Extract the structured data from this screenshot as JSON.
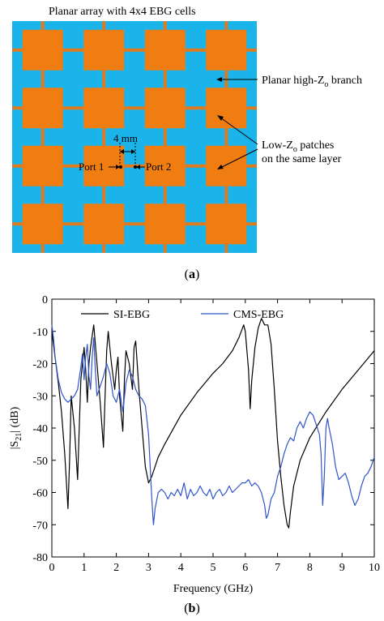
{
  "panel_a": {
    "title": "Planar array with 4x4 EBG cells",
    "grid_rows": 4,
    "grid_cols": 4,
    "colors": {
      "substrate": "#1ab4ea",
      "patch": "#f07d12",
      "branch": "#e07a20"
    },
    "dim_label": "4 mm",
    "port1_label": "Port 1",
    "port2_label": "Port 2",
    "label_branch_pre": "Planar high-Z",
    "label_branch_sub": "o",
    "label_branch_post": " branch",
    "label_patch_pre": "Low-Z",
    "label_patch_sub": "o",
    "label_patch_post": " patches",
    "label_patch_line2": "on the same layer",
    "caption_open": "(",
    "caption_letter": "a",
    "caption_close": ")"
  },
  "panel_b": {
    "caption_open": "(",
    "caption_letter": "b",
    "caption_close": ")",
    "ylabel_pre": "|S",
    "ylabel_sub": "21",
    "ylabel_post": "| (dB)",
    "chart_data": {
      "type": "line",
      "xlabel": "Frequency (GHz)",
      "ylabel": "|S21| (dB)",
      "xlim": [
        0,
        10
      ],
      "ylim": [
        -80,
        0
      ],
      "xticks": [
        0,
        1,
        2,
        3,
        4,
        5,
        6,
        7,
        8,
        9,
        10
      ],
      "yticks": [
        0,
        -10,
        -20,
        -30,
        -40,
        -50,
        -60,
        -70,
        -80
      ],
      "grid": false,
      "legend_position": "top-left",
      "series": [
        {
          "name": "SI-EBG",
          "color": "#000000",
          "points": [
            [
              0,
              -10
            ],
            [
              0.1,
              -18
            ],
            [
              0.2,
              -26
            ],
            [
              0.3,
              -35
            ],
            [
              0.4,
              -48
            ],
            [
              0.5,
              -65
            ],
            [
              0.55,
              -50
            ],
            [
              0.6,
              -30
            ],
            [
              0.7,
              -40
            ],
            [
              0.8,
              -56
            ],
            [
              0.85,
              -40
            ],
            [
              0.9,
              -25
            ],
            [
              1.0,
              -15
            ],
            [
              1.05,
              -22
            ],
            [
              1.1,
              -32
            ],
            [
              1.15,
              -20
            ],
            [
              1.2,
              -15
            ],
            [
              1.3,
              -8
            ],
            [
              1.4,
              -20
            ],
            [
              1.5,
              -32
            ],
            [
              1.6,
              -46
            ],
            [
              1.65,
              -30
            ],
            [
              1.7,
              -16
            ],
            [
              1.75,
              -10
            ],
            [
              1.85,
              -20
            ],
            [
              1.95,
              -28
            ],
            [
              2.0,
              -22
            ],
            [
              2.05,
              -18
            ],
            [
              2.1,
              -30
            ],
            [
              2.2,
              -41
            ],
            [
              2.25,
              -25
            ],
            [
              2.3,
              -16
            ],
            [
              2.4,
              -20
            ],
            [
              2.5,
              -28
            ],
            [
              2.55,
              -15
            ],
            [
              2.6,
              -13
            ],
            [
              2.7,
              -28
            ],
            [
              2.8,
              -40
            ],
            [
              2.9,
              -52
            ],
            [
              3.0,
              -57
            ],
            [
              3.1,
              -55
            ],
            [
              3.3,
              -49
            ],
            [
              3.5,
              -45
            ],
            [
              4.0,
              -36
            ],
            [
              4.5,
              -29
            ],
            [
              5.0,
              -23
            ],
            [
              5.3,
              -20
            ],
            [
              5.6,
              -16
            ],
            [
              5.8,
              -12
            ],
            [
              5.95,
              -8
            ],
            [
              6.0,
              -10
            ],
            [
              6.1,
              -22
            ],
            [
              6.15,
              -34
            ],
            [
              6.2,
              -25
            ],
            [
              6.3,
              -15
            ],
            [
              6.4,
              -9
            ],
            [
              6.5,
              -6
            ],
            [
              6.6,
              -8
            ],
            [
              6.7,
              -8
            ],
            [
              6.8,
              -14
            ],
            [
              6.9,
              -28
            ],
            [
              7.0,
              -44
            ],
            [
              7.1,
              -55
            ],
            [
              7.2,
              -64
            ],
            [
              7.3,
              -70
            ],
            [
              7.35,
              -71
            ],
            [
              7.4,
              -66
            ],
            [
              7.5,
              -58
            ],
            [
              7.7,
              -50
            ],
            [
              8.0,
              -43
            ],
            [
              8.5,
              -35
            ],
            [
              9.0,
              -28
            ],
            [
              9.5,
              -22
            ],
            [
              10.0,
              -16
            ]
          ]
        },
        {
          "name": "CMS-EBG",
          "color": "#2f55c8",
          "points": [
            [
              0,
              -8
            ],
            [
              0.05,
              -12
            ],
            [
              0.1,
              -18
            ],
            [
              0.2,
              -25
            ],
            [
              0.3,
              -29
            ],
            [
              0.4,
              -31
            ],
            [
              0.5,
              -32
            ],
            [
              0.6,
              -31
            ],
            [
              0.7,
              -30
            ],
            [
              0.8,
              -28
            ],
            [
              0.9,
              -21
            ],
            [
              0.95,
              -17
            ],
            [
              1.0,
              -25
            ],
            [
              1.05,
              -18
            ],
            [
              1.1,
              -14
            ],
            [
              1.15,
              -24
            ],
            [
              1.2,
              -28
            ],
            [
              1.25,
              -18
            ],
            [
              1.3,
              -12
            ],
            [
              1.35,
              -22
            ],
            [
              1.4,
              -30
            ],
            [
              1.5,
              -27
            ],
            [
              1.6,
              -24
            ],
            [
              1.7,
              -20
            ],
            [
              1.8,
              -23
            ],
            [
              1.9,
              -30
            ],
            [
              2.0,
              -32
            ],
            [
              2.1,
              -28
            ],
            [
              2.2,
              -35
            ],
            [
              2.3,
              -26
            ],
            [
              2.4,
              -22
            ],
            [
              2.5,
              -24
            ],
            [
              2.6,
              -28
            ],
            [
              2.7,
              -30
            ],
            [
              2.8,
              -31
            ],
            [
              2.9,
              -33
            ],
            [
              3.0,
              -42
            ],
            [
              3.05,
              -52
            ],
            [
              3.1,
              -62
            ],
            [
              3.15,
              -70
            ],
            [
              3.2,
              -65
            ],
            [
              3.3,
              -60
            ],
            [
              3.4,
              -59
            ],
            [
              3.5,
              -60
            ],
            [
              3.6,
              -62
            ],
            [
              3.7,
              -60
            ],
            [
              3.8,
              -61
            ],
            [
              3.9,
              -59
            ],
            [
              4.0,
              -61
            ],
            [
              4.1,
              -57
            ],
            [
              4.2,
              -62
            ],
            [
              4.3,
              -59
            ],
            [
              4.4,
              -61
            ],
            [
              4.5,
              -60
            ],
            [
              4.6,
              -58
            ],
            [
              4.7,
              -60
            ],
            [
              4.8,
              -61
            ],
            [
              4.9,
              -59
            ],
            [
              5.0,
              -62
            ],
            [
              5.1,
              -60
            ],
            [
              5.2,
              -59
            ],
            [
              5.3,
              -61
            ],
            [
              5.4,
              -60
            ],
            [
              5.5,
              -58
            ],
            [
              5.6,
              -60
            ],
            [
              5.7,
              -59
            ],
            [
              5.8,
              -58
            ],
            [
              5.9,
              -57
            ],
            [
              6.0,
              -57
            ],
            [
              6.1,
              -56
            ],
            [
              6.2,
              -58
            ],
            [
              6.3,
              -57
            ],
            [
              6.4,
              -58
            ],
            [
              6.5,
              -60
            ],
            [
              6.6,
              -64
            ],
            [
              6.65,
              -68
            ],
            [
              6.7,
              -67
            ],
            [
              6.8,
              -62
            ],
            [
              6.9,
              -60
            ],
            [
              7.0,
              -55
            ],
            [
              7.1,
              -52
            ],
            [
              7.2,
              -48
            ],
            [
              7.3,
              -45
            ],
            [
              7.4,
              -43
            ],
            [
              7.5,
              -44
            ],
            [
              7.6,
              -40
            ],
            [
              7.7,
              -38
            ],
            [
              7.8,
              -40
            ],
            [
              7.9,
              -37
            ],
            [
              8.0,
              -35
            ],
            [
              8.1,
              -36
            ],
            [
              8.2,
              -39
            ],
            [
              8.3,
              -42
            ],
            [
              8.35,
              -48
            ],
            [
              8.4,
              -64
            ],
            [
              8.45,
              -55
            ],
            [
              8.5,
              -40
            ],
            [
              8.55,
              -37
            ],
            [
              8.6,
              -40
            ],
            [
              8.7,
              -45
            ],
            [
              8.8,
              -52
            ],
            [
              8.9,
              -56
            ],
            [
              9.0,
              -55
            ],
            [
              9.1,
              -54
            ],
            [
              9.2,
              -57
            ],
            [
              9.3,
              -61
            ],
            [
              9.4,
              -64
            ],
            [
              9.5,
              -62
            ],
            [
              9.6,
              -58
            ],
            [
              9.7,
              -55
            ],
            [
              9.8,
              -54
            ],
            [
              9.9,
              -52
            ],
            [
              10.0,
              -49
            ]
          ]
        }
      ]
    }
  }
}
